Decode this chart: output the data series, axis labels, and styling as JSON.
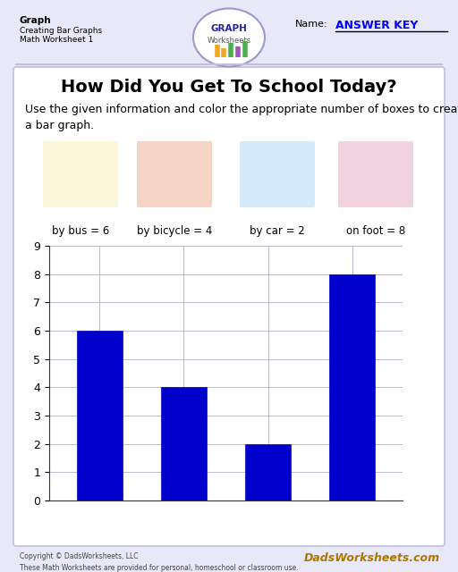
{
  "title": "How Did You Get To School Today?",
  "instruction": "Use the given information and color the appropriate number of boxes to create\na bar graph.",
  "header_left_lines": [
    "Graph",
    "Creating Bar Graphs",
    "Math Worksheet 1"
  ],
  "header_name_label": "Name:",
  "header_answer": "ANSWER KEY",
  "categories": [
    "by bus",
    "by bicycle",
    "by car",
    "on foot"
  ],
  "values": [
    6,
    4,
    2,
    8
  ],
  "bar_color": "#0000CC",
  "bar_edge_color": "#0000CC",
  "grid_color": "#b0b0d0",
  "ylim": [
    0,
    9
  ],
  "yticks": [
    0,
    1,
    2,
    3,
    4,
    5,
    6,
    7,
    8,
    9
  ],
  "bg_page": "#e8e8f8",
  "bg_content": "#ffffff",
  "footer_left": "Copyright © DadsWorksheets, LLC\nThese Math Worksheets are provided for personal, homeschool or classroom use.",
  "footer_right": "DadsWorksheets.com",
  "category_labels": [
    "by bus = 6",
    "by bicycle = 4",
    "by car = 2",
    "on foot = 8"
  ],
  "title_fontsize": 14,
  "instruction_fontsize": 9,
  "bar_width": 0.55,
  "logo_text1": "GRAPH",
  "logo_text2": "Worksheets"
}
